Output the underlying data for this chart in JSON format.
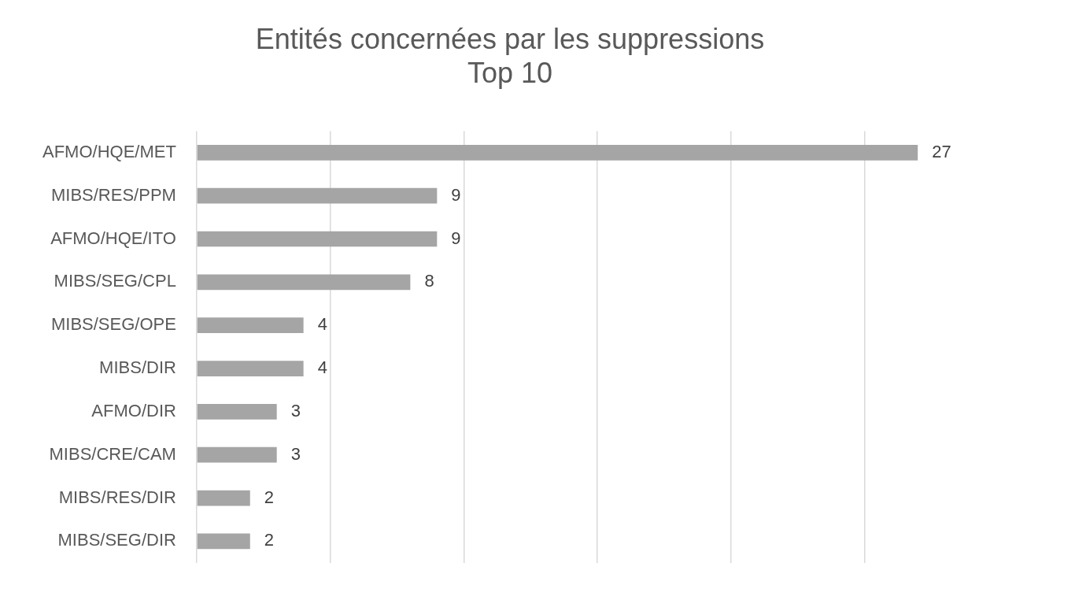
{
  "chart_data": {
    "type": "bar",
    "orientation": "horizontal",
    "title": [
      "Entités concernées par les suppressions",
      "Top 10"
    ],
    "categories": [
      "AFMO/HQE/MET",
      "MIBS/RES/PPM",
      "AFMO/HQE/ITO",
      "MIBS/SEG/CPL",
      "MIBS/SEG/OPE",
      "MIBS/DIR",
      "AFMO/DIR",
      "MIBS/CRE/CAM",
      "MIBS/RES/DIR",
      "MIBS/SEG/DIR"
    ],
    "values": [
      27,
      9,
      9,
      8,
      4,
      4,
      3,
      3,
      2,
      2
    ],
    "color": "#a5a5a5",
    "xticks": [
      {
        "value": 0,
        "label": null
      },
      {
        "value": 5,
        "label": null
      },
      {
        "value": 10,
        "label": null
      },
      {
        "value": 15,
        "label": null
      },
      {
        "value": 20,
        "label": null
      },
      {
        "value": 25,
        "label": null
      }
    ],
    "tick_labels": "y",
    "grid": "x",
    "data_labels": true,
    "legend": false
  }
}
